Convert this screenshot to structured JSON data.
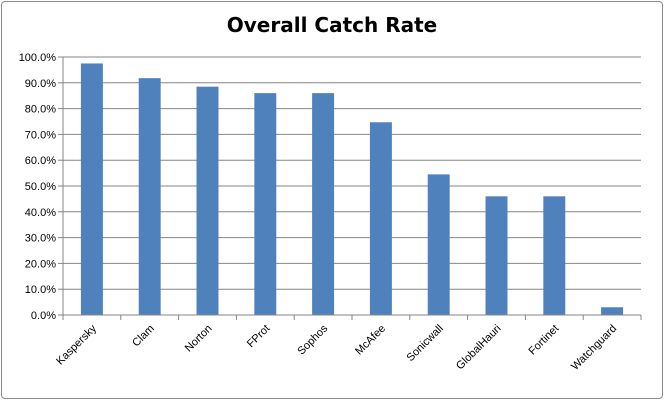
{
  "chart_data": {
    "type": "bar",
    "title": "Overall Catch Rate",
    "xlabel": "",
    "ylabel": "",
    "categories": [
      "Kaspersky",
      "Clam",
      "Norton",
      "FProt",
      "Sophos",
      "McAfee",
      "Sonicwall",
      "GlobalHauri",
      "Fortinet",
      "Watchguard"
    ],
    "values": [
      97.5,
      91.8,
      88.5,
      86.0,
      86.0,
      74.7,
      54.5,
      46.0,
      46.0,
      3.0
    ],
    "ylim": [
      0,
      100
    ],
    "yticks": [
      "0.0%",
      "10.0%",
      "20.0%",
      "30.0%",
      "40.0%",
      "50.0%",
      "60.0%",
      "70.0%",
      "80.0%",
      "90.0%",
      "100.0%"
    ],
    "grid": true,
    "legend": "none",
    "colors": {
      "bar": "#4f81bd",
      "grid": "#868686",
      "axis": "#868686"
    }
  }
}
